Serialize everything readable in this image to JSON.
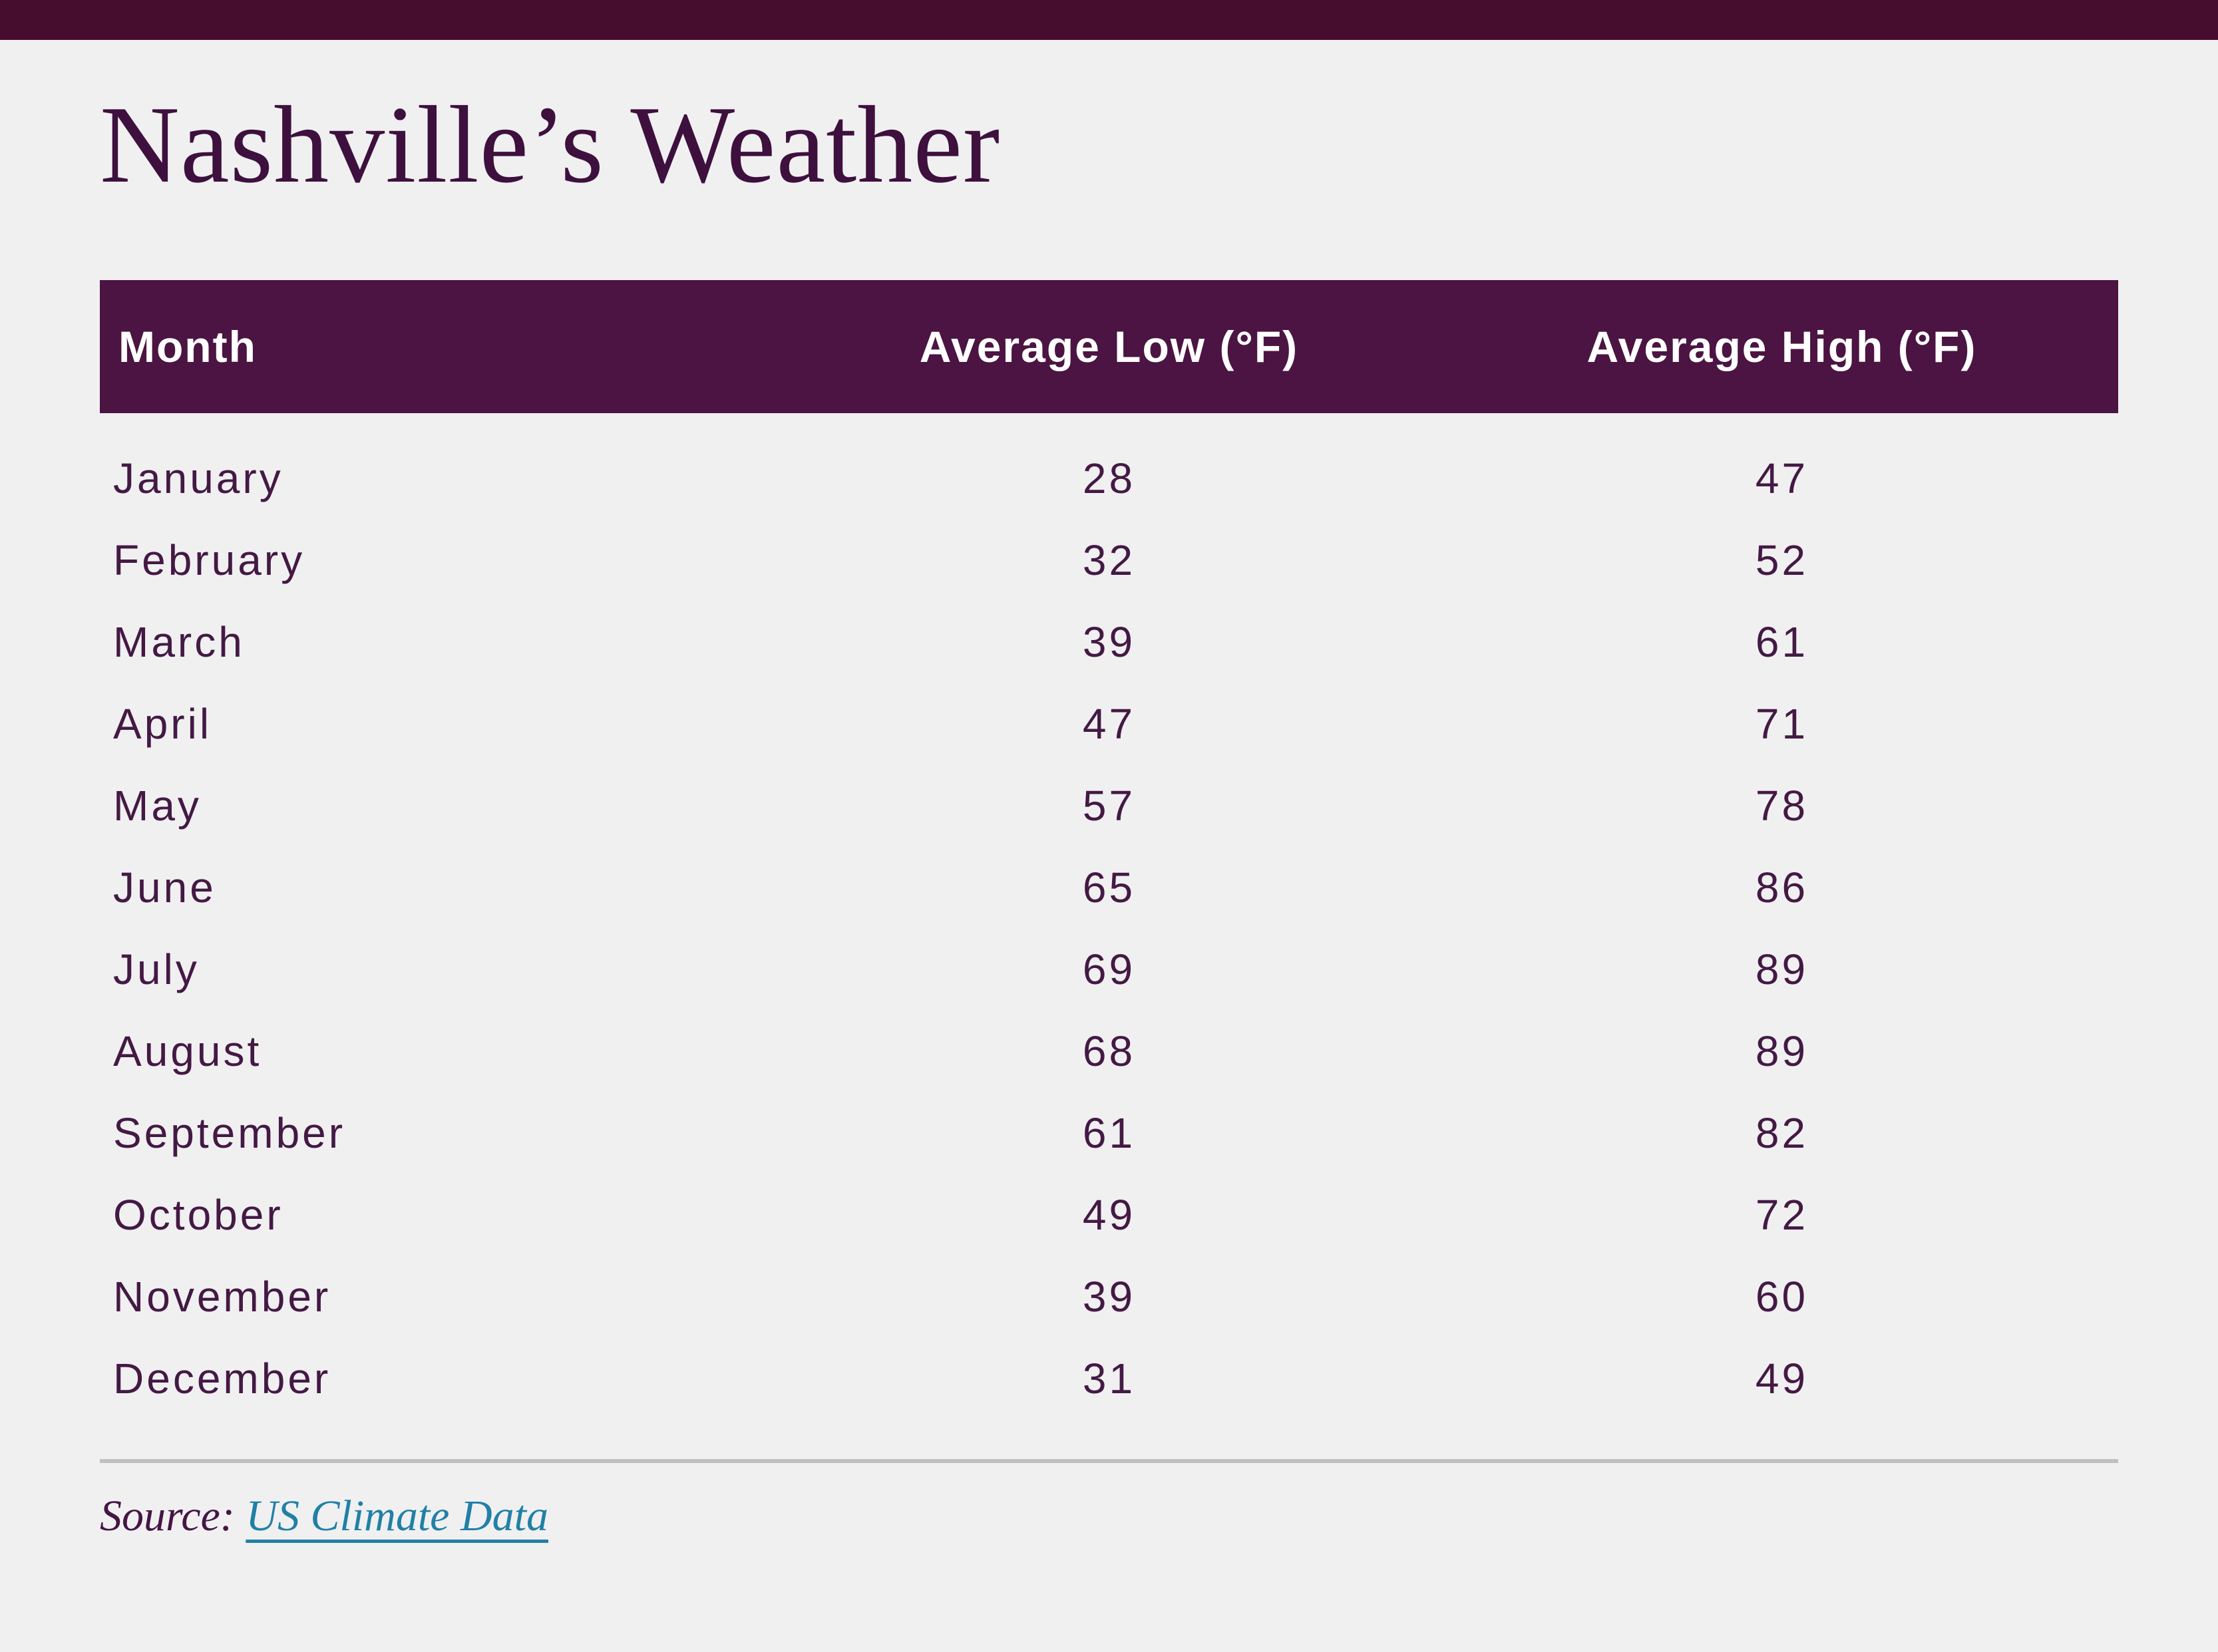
{
  "page": {
    "background_color": "#f0f0f1",
    "top_bar_color": "#460d2f"
  },
  "chart_data": {
    "type": "table",
    "title": "Nashville’s Weather",
    "columns": [
      "Month",
      "Average Low (°F)",
      "Average High (°F)"
    ],
    "categories": [
      "January",
      "February",
      "March",
      "April",
      "May",
      "June",
      "July",
      "August",
      "September",
      "October",
      "November",
      "December"
    ],
    "series": [
      {
        "name": "Average Low (°F)",
        "values": [
          28,
          32,
          39,
          47,
          57,
          65,
          69,
          68,
          61,
          49,
          39,
          31
        ]
      },
      {
        "name": "Average High (°F)",
        "values": [
          47,
          52,
          61,
          71,
          78,
          86,
          89,
          89,
          82,
          72,
          60,
          49
        ]
      }
    ],
    "legend_position": "none",
    "grid": false
  },
  "table_style": {
    "header_bg": "#4b1442",
    "header_text_color": "#ffffff",
    "row_text_color": "#441944"
  },
  "source": {
    "label": "Source:",
    "link_text": "US Climate Data",
    "link_color": "#2180a6"
  }
}
